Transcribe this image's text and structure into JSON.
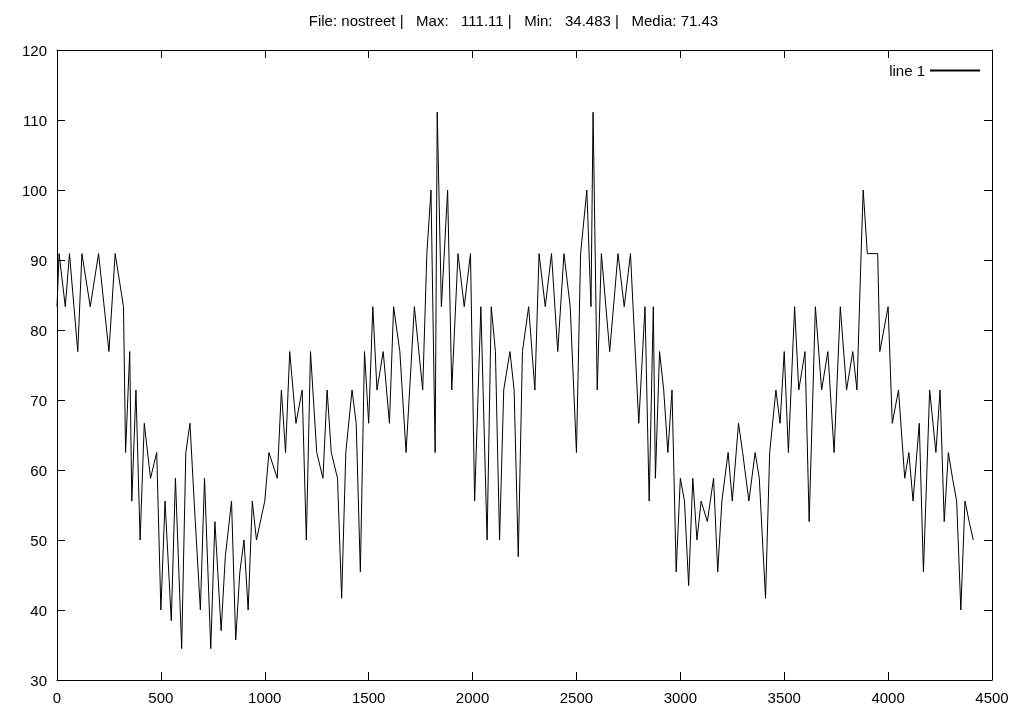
{
  "chart_data": {
    "type": "line",
    "title": "File: nostreet |   Max:   111.11 |   Min:   34.483 |   Media: 71.43",
    "xlim": [
      0,
      4500
    ],
    "xticks": [
      0,
      500,
      1000,
      1500,
      2000,
      2500,
      3000,
      3500,
      4000,
      4500
    ],
    "ylim": [
      30,
      120
    ],
    "yticks": [
      30,
      40,
      50,
      60,
      70,
      80,
      90,
      100,
      110,
      120
    ],
    "grid": false,
    "legend": "top right",
    "marker": "none",
    "line_style": "solid",
    "series": [
      {
        "name": "line 1",
        "color": "#000000",
        "x": [
          0,
          10,
          40,
          60,
          100,
          120,
          160,
          200,
          250,
          280,
          320,
          330,
          350,
          360,
          380,
          400,
          420,
          450,
          480,
          500,
          520,
          550,
          570,
          600,
          620,
          640,
          660,
          690,
          710,
          740,
          760,
          790,
          810,
          840,
          860,
          880,
          900,
          920,
          940,
          960,
          1000,
          1020,
          1060,
          1080,
          1100,
          1120,
          1150,
          1180,
          1200,
          1220,
          1250,
          1280,
          1300,
          1320,
          1350,
          1370,
          1390,
          1420,
          1440,
          1460,
          1480,
          1500,
          1520,
          1540,
          1570,
          1600,
          1620,
          1650,
          1680,
          1720,
          1760,
          1780,
          1800,
          1820,
          1830,
          1850,
          1880,
          1900,
          1930,
          1960,
          1990,
          2010,
          2040,
          2070,
          2090,
          2110,
          2130,
          2150,
          2180,
          2200,
          2220,
          2240,
          2270,
          2300,
          2320,
          2350,
          2380,
          2410,
          2440,
          2470,
          2500,
          2520,
          2550,
          2570,
          2580,
          2600,
          2620,
          2660,
          2700,
          2730,
          2760,
          2800,
          2830,
          2850,
          2870,
          2880,
          2900,
          2920,
          2940,
          2960,
          2980,
          3000,
          3020,
          3040,
          3060,
          3080,
          3100,
          3130,
          3160,
          3180,
          3200,
          3230,
          3250,
          3280,
          3300,
          3330,
          3360,
          3380,
          3410,
          3430,
          3460,
          3480,
          3500,
          3520,
          3550,
          3570,
          3600,
          3620,
          3650,
          3680,
          3710,
          3740,
          3770,
          3800,
          3830,
          3850,
          3870,
          3880,
          3900,
          3950,
          3960,
          4000,
          4020,
          4050,
          4080,
          4100,
          4120,
          4150,
          4170,
          4200,
          4230,
          4250,
          4270,
          4290,
          4310,
          4330,
          4350,
          4370,
          4390,
          4410
        ],
        "values": [
          83.33,
          90.91,
          83.33,
          90.91,
          76.92,
          90.91,
          83.33,
          90.91,
          76.92,
          90.91,
          83.33,
          62.5,
          76.92,
          55.56,
          71.43,
          50,
          66.67,
          58.82,
          62.5,
          40,
          55.56,
          38.46,
          58.82,
          34.48,
          62.5,
          66.67,
          55.56,
          40,
          58.82,
          34.48,
          52.63,
          37.04,
          47.62,
          55.56,
          35.71,
          45.45,
          50,
          40,
          55.56,
          50,
          55.56,
          62.5,
          58.82,
          71.43,
          62.5,
          76.92,
          66.67,
          71.43,
          50,
          76.92,
          62.5,
          58.82,
          71.43,
          62.5,
          58.82,
          41.67,
          62.5,
          71.43,
          66.67,
          45.45,
          76.92,
          66.67,
          83.33,
          71.43,
          76.92,
          66.67,
          83.33,
          76.92,
          62.5,
          83.33,
          71.43,
          90.91,
          100,
          62.5,
          111.11,
          83.33,
          100,
          71.43,
          90.91,
          83.33,
          90.91,
          55.56,
          83.33,
          50,
          83.33,
          76.92,
          50,
          71.43,
          76.92,
          71.43,
          47.62,
          76.92,
          83.33,
          71.43,
          90.91,
          83.33,
          90.91,
          76.92,
          90.91,
          83.33,
          62.5,
          90.91,
          100,
          83.33,
          111.11,
          71.43,
          90.91,
          76.92,
          90.91,
          83.33,
          90.91,
          66.67,
          83.33,
          55.56,
          83.33,
          58.82,
          76.92,
          71.43,
          62.5,
          71.43,
          45.45,
          58.82,
          55.56,
          43.48,
          58.82,
          50,
          55.56,
          52.63,
          58.82,
          45.45,
          55.56,
          62.5,
          55.56,
          66.67,
          62.5,
          55.56,
          62.5,
          58.82,
          41.67,
          62.5,
          71.43,
          66.67,
          76.92,
          62.5,
          83.33,
          71.43,
          76.92,
          52.63,
          83.33,
          71.43,
          76.92,
          62.5,
          83.33,
          71.43,
          76.92,
          71.43,
          90.91,
          100,
          90.91,
          90.91,
          76.92,
          83.33,
          66.67,
          71.43,
          58.82,
          62.5,
          55.56,
          66.67,
          45.45,
          71.43,
          62.5,
          71.43,
          52.63,
          62.5,
          58.82,
          55.56,
          40,
          55.56,
          52.63,
          50
        ]
      }
    ]
  }
}
